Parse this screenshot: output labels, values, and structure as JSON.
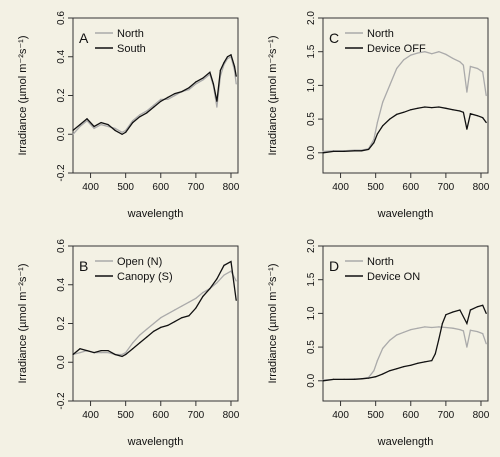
{
  "background": "#f3f1e4",
  "chart_data": [
    {
      "id": "A",
      "type": "line",
      "panel_label": "A",
      "xlabel": "wavelength",
      "ylabel": "Irradiance (µmol m⁻²s⁻¹)",
      "xlim": [
        350,
        820
      ],
      "ylim": [
        -0.2,
        0.6
      ],
      "xticks": [
        "400",
        "500",
        "600",
        "700",
        "800"
      ],
      "yticks": [
        "-0.2",
        "0.0",
        "0.2",
        "0.4",
        "0.6"
      ],
      "legend_position": "top-left",
      "grid": false,
      "series": [
        {
          "name": "North",
          "color": "#aaaaaa",
          "points": [
            [
              350,
              0.0
            ],
            [
              370,
              0.04
            ],
            [
              390,
              0.07
            ],
            [
              410,
              0.03
            ],
            [
              430,
              0.05
            ],
            [
              450,
              0.04
            ],
            [
              470,
              0.03
            ],
            [
              490,
              0.01
            ],
            [
              500,
              0.02
            ],
            [
              520,
              0.07
            ],
            [
              540,
              0.1
            ],
            [
              560,
              0.12
            ],
            [
              580,
              0.15
            ],
            [
              600,
              0.18
            ],
            [
              620,
              0.18
            ],
            [
              640,
              0.2
            ],
            [
              660,
              0.22
            ],
            [
              680,
              0.23
            ],
            [
              700,
              0.26
            ],
            [
              720,
              0.28
            ],
            [
              740,
              0.31
            ],
            [
              750,
              0.25
            ],
            [
              760,
              0.14
            ],
            [
              770,
              0.3
            ],
            [
              780,
              0.36
            ],
            [
              790,
              0.39
            ],
            [
              800,
              0.4
            ],
            [
              810,
              0.33
            ],
            [
              815,
              0.26
            ]
          ]
        },
        {
          "name": "South",
          "color": "#111111",
          "points": [
            [
              350,
              0.02
            ],
            [
              370,
              0.05
            ],
            [
              390,
              0.08
            ],
            [
              410,
              0.04
            ],
            [
              430,
              0.06
            ],
            [
              450,
              0.05
            ],
            [
              470,
              0.02
            ],
            [
              490,
              0.0
            ],
            [
              500,
              0.01
            ],
            [
              520,
              0.06
            ],
            [
              540,
              0.09
            ],
            [
              560,
              0.11
            ],
            [
              580,
              0.14
            ],
            [
              600,
              0.17
            ],
            [
              620,
              0.19
            ],
            [
              640,
              0.21
            ],
            [
              660,
              0.22
            ],
            [
              680,
              0.24
            ],
            [
              700,
              0.27
            ],
            [
              720,
              0.29
            ],
            [
              740,
              0.32
            ],
            [
              750,
              0.26
            ],
            [
              760,
              0.17
            ],
            [
              770,
              0.33
            ],
            [
              780,
              0.37
            ],
            [
              790,
              0.4
            ],
            [
              800,
              0.41
            ],
            [
              810,
              0.35
            ],
            [
              815,
              0.3
            ]
          ]
        }
      ]
    },
    {
      "id": "C",
      "type": "line",
      "panel_label": "C",
      "xlabel": "wavelength",
      "ylabel": "Irradiance (µmol m⁻²s⁻¹)",
      "xlim": [
        350,
        820
      ],
      "ylim": [
        -0.3,
        2.0
      ],
      "xticks": [
        "400",
        "500",
        "600",
        "700",
        "800"
      ],
      "yticks": [
        "0.0",
        "0.5",
        "1.0",
        "1.5",
        "2.0"
      ],
      "legend_position": "top-left",
      "grid": false,
      "series": [
        {
          "name": "North",
          "color": "#aaaaaa",
          "points": [
            [
              350,
              0.02
            ],
            [
              380,
              0.03
            ],
            [
              410,
              0.03
            ],
            [
              440,
              0.04
            ],
            [
              460,
              0.04
            ],
            [
              480,
              0.06
            ],
            [
              495,
              0.2
            ],
            [
              505,
              0.45
            ],
            [
              520,
              0.75
            ],
            [
              540,
              1.0
            ],
            [
              560,
              1.25
            ],
            [
              580,
              1.38
            ],
            [
              600,
              1.45
            ],
            [
              620,
              1.48
            ],
            [
              640,
              1.5
            ],
            [
              660,
              1.47
            ],
            [
              680,
              1.5
            ],
            [
              700,
              1.46
            ],
            [
              720,
              1.4
            ],
            [
              740,
              1.35
            ],
            [
              750,
              1.3
            ],
            [
              760,
              0.9
            ],
            [
              770,
              1.28
            ],
            [
              790,
              1.25
            ],
            [
              805,
              1.2
            ],
            [
              815,
              0.85
            ]
          ]
        },
        {
          "name": "Device OFF",
          "color": "#111111",
          "points": [
            [
              350,
              0.0
            ],
            [
              380,
              0.02
            ],
            [
              410,
              0.02
            ],
            [
              440,
              0.03
            ],
            [
              460,
              0.03
            ],
            [
              480,
              0.05
            ],
            [
              495,
              0.15
            ],
            [
              505,
              0.28
            ],
            [
              520,
              0.4
            ],
            [
              540,
              0.5
            ],
            [
              560,
              0.57
            ],
            [
              580,
              0.6
            ],
            [
              600,
              0.64
            ],
            [
              620,
              0.66
            ],
            [
              640,
              0.68
            ],
            [
              660,
              0.67
            ],
            [
              680,
              0.68
            ],
            [
              700,
              0.66
            ],
            [
              720,
              0.64
            ],
            [
              740,
              0.62
            ],
            [
              750,
              0.6
            ],
            [
              760,
              0.35
            ],
            [
              770,
              0.58
            ],
            [
              790,
              0.55
            ],
            [
              805,
              0.52
            ],
            [
              815,
              0.45
            ]
          ]
        }
      ]
    },
    {
      "id": "B",
      "type": "line",
      "panel_label": "B",
      "xlabel": "wavelength",
      "ylabel": "Irradiance (µmol m⁻²s⁻¹)",
      "xlim": [
        350,
        820
      ],
      "ylim": [
        -0.2,
        0.6
      ],
      "xticks": [
        "400",
        "500",
        "600",
        "700",
        "800"
      ],
      "yticks": [
        "-0.2",
        "0.0",
        "0.2",
        "0.4",
        "0.6"
      ],
      "legend_position": "top-left",
      "grid": false,
      "series": [
        {
          "name": "Open (N)",
          "color": "#aaaaaa",
          "points": [
            [
              350,
              0.04
            ],
            [
              370,
              0.05
            ],
            [
              390,
              0.06
            ],
            [
              410,
              0.05
            ],
            [
              430,
              0.05
            ],
            [
              450,
              0.05
            ],
            [
              470,
              0.04
            ],
            [
              490,
              0.04
            ],
            [
              500,
              0.05
            ],
            [
              520,
              0.1
            ],
            [
              540,
              0.14
            ],
            [
              560,
              0.17
            ],
            [
              580,
              0.2
            ],
            [
              600,
              0.23
            ],
            [
              620,
              0.25
            ],
            [
              640,
              0.27
            ],
            [
              660,
              0.29
            ],
            [
              680,
              0.31
            ],
            [
              700,
              0.33
            ],
            [
              720,
              0.36
            ],
            [
              740,
              0.38
            ],
            [
              760,
              0.41
            ],
            [
              780,
              0.45
            ],
            [
              800,
              0.47
            ],
            [
              815,
              0.42
            ]
          ]
        },
        {
          "name": "Canopy (S)",
          "color": "#111111",
          "points": [
            [
              350,
              0.04
            ],
            [
              370,
              0.07
            ],
            [
              390,
              0.06
            ],
            [
              410,
              0.05
            ],
            [
              430,
              0.06
            ],
            [
              450,
              0.06
            ],
            [
              470,
              0.04
            ],
            [
              490,
              0.03
            ],
            [
              500,
              0.04
            ],
            [
              520,
              0.07
            ],
            [
              540,
              0.1
            ],
            [
              560,
              0.13
            ],
            [
              580,
              0.16
            ],
            [
              600,
              0.18
            ],
            [
              620,
              0.19
            ],
            [
              640,
              0.21
            ],
            [
              660,
              0.23
            ],
            [
              680,
              0.24
            ],
            [
              700,
              0.28
            ],
            [
              720,
              0.34
            ],
            [
              740,
              0.38
            ],
            [
              760,
              0.43
            ],
            [
              780,
              0.5
            ],
            [
              800,
              0.52
            ],
            [
              815,
              0.32
            ]
          ]
        }
      ]
    },
    {
      "id": "D",
      "type": "line",
      "panel_label": "D",
      "xlabel": "wavelength",
      "ylabel": "Irradiance (µmol m⁻²s⁻¹)",
      "xlim": [
        350,
        820
      ],
      "ylim": [
        -0.3,
        2.0
      ],
      "xticks": [
        "400",
        "500",
        "600",
        "700",
        "800"
      ],
      "yticks": [
        "0.0",
        "0.5",
        "1.0",
        "1.5",
        "2.0"
      ],
      "legend_position": "top-left",
      "grid": false,
      "series": [
        {
          "name": "North",
          "color": "#aaaaaa",
          "points": [
            [
              350,
              0.01
            ],
            [
              380,
              0.02
            ],
            [
              410,
              0.02
            ],
            [
              440,
              0.03
            ],
            [
              460,
              0.03
            ],
            [
              480,
              0.05
            ],
            [
              495,
              0.15
            ],
            [
              505,
              0.3
            ],
            [
              520,
              0.48
            ],
            [
              540,
              0.6
            ],
            [
              560,
              0.68
            ],
            [
              580,
              0.72
            ],
            [
              600,
              0.76
            ],
            [
              620,
              0.78
            ],
            [
              640,
              0.8
            ],
            [
              660,
              0.79
            ],
            [
              680,
              0.8
            ],
            [
              700,
              0.79
            ],
            [
              720,
              0.78
            ],
            [
              740,
              0.76
            ],
            [
              750,
              0.74
            ],
            [
              760,
              0.5
            ],
            [
              770,
              0.75
            ],
            [
              790,
              0.73
            ],
            [
              805,
              0.7
            ],
            [
              815,
              0.55
            ]
          ]
        },
        {
          "name": "Device ON",
          "color": "#111111",
          "points": [
            [
              350,
              0.0
            ],
            [
              380,
              0.02
            ],
            [
              410,
              0.02
            ],
            [
              440,
              0.02
            ],
            [
              460,
              0.03
            ],
            [
              480,
              0.04
            ],
            [
              500,
              0.06
            ],
            [
              520,
              0.1
            ],
            [
              540,
              0.15
            ],
            [
              560,
              0.18
            ],
            [
              580,
              0.21
            ],
            [
              600,
              0.23
            ],
            [
              620,
              0.26
            ],
            [
              640,
              0.28
            ],
            [
              660,
              0.3
            ],
            [
              670,
              0.4
            ],
            [
              680,
              0.62
            ],
            [
              690,
              0.85
            ],
            [
              700,
              0.98
            ],
            [
              720,
              1.02
            ],
            [
              740,
              1.05
            ],
            [
              760,
              0.85
            ],
            [
              770,
              1.05
            ],
            [
              790,
              1.1
            ],
            [
              805,
              1.12
            ],
            [
              815,
              1.0
            ]
          ]
        }
      ]
    }
  ]
}
